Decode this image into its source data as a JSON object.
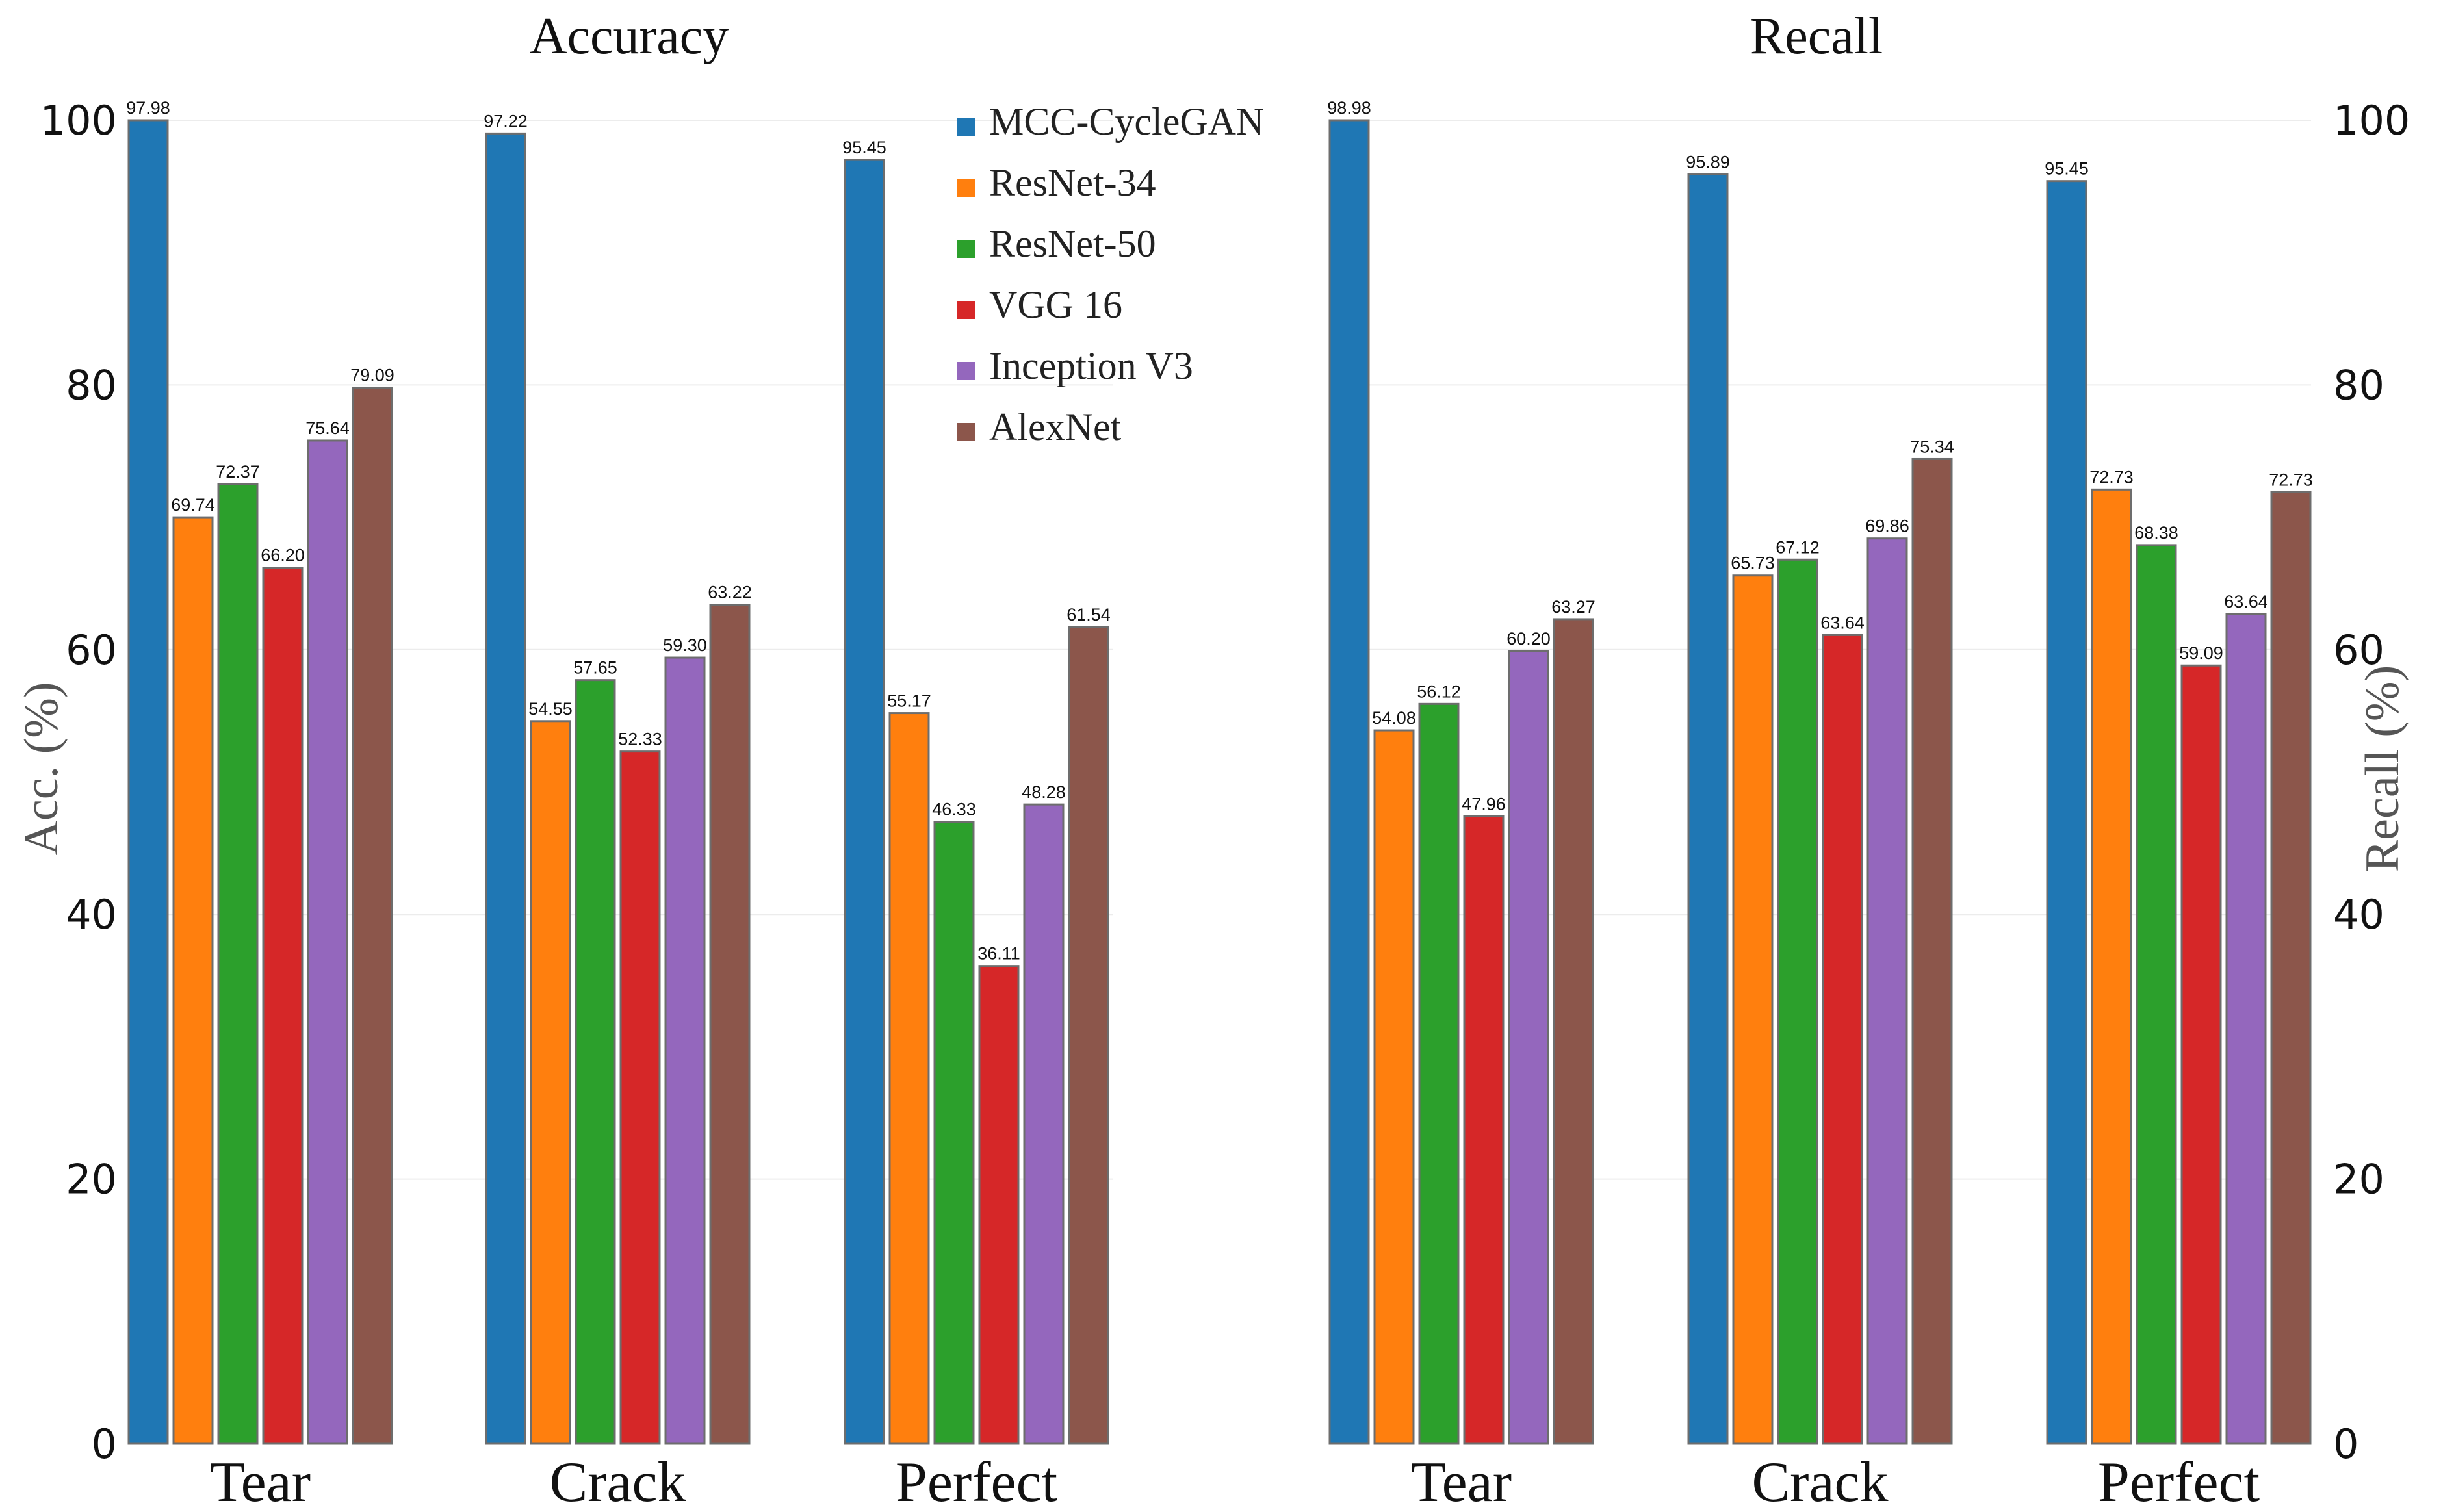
{
  "chart_data": [
    {
      "type": "bar",
      "title": "Accuracy",
      "ylabel": "Acc. (%)",
      "xlabel": "",
      "ylim": [
        0,
        100
      ],
      "yticks": [
        0,
        20,
        40,
        60,
        80,
        100
      ],
      "axis_side": "left",
      "legend": "top-right",
      "categories": [
        "Tear",
        "Crack",
        "Perfect"
      ],
      "series": [
        {
          "name": "MCC-CycleGAN",
          "color": "#1f77b4",
          "values": [
            97.98,
            97.22,
            95.45
          ]
        },
        {
          "name": "ResNet-34",
          "color": "#ff7f0e",
          "values": [
            69.74,
            54.55,
            55.17
          ]
        },
        {
          "name": "ResNet-50",
          "color": "#2ca02c",
          "values": [
            72.37,
            57.65,
            46.33
          ]
        },
        {
          "name": "VGG 16",
          "color": "#d62728",
          "values": [
            66.2,
            52.33,
            36.11
          ]
        },
        {
          "name": "Inception V3",
          "color": "#9467bd",
          "values": [
            75.64,
            59.3,
            48.28
          ]
        },
        {
          "name": "AlexNet",
          "color": "#8c564b",
          "values": [
            79.09,
            63.22,
            61.54
          ]
        }
      ],
      "value_labels": [
        [
          "97.98",
          "97.22",
          "95.45"
        ],
        [
          "69.74",
          "54.55",
          "55.17"
        ],
        [
          "72.37",
          "57.65",
          "46.33"
        ],
        [
          "66.20",
          "52.33",
          "36.11"
        ],
        [
          "75.64",
          "59.30",
          "48.28"
        ],
        [
          "79.09",
          "63.22",
          "61.54"
        ]
      ],
      "bar_heights": [
        [
          100,
          99,
          97
        ],
        [
          70,
          54.6,
          55.2
        ],
        [
          72.5,
          57.7,
          47
        ],
        [
          66.2,
          52.3,
          36.1
        ],
        [
          75.8,
          59.4,
          48.3
        ],
        [
          79.8,
          63.4,
          61.7
        ]
      ]
    },
    {
      "type": "bar",
      "title": "Recall",
      "ylabel": "Recall (%)",
      "xlabel": "",
      "ylim": [
        0,
        100
      ],
      "yticks": [
        0,
        20,
        40,
        60,
        80,
        100
      ],
      "axis_side": "right",
      "categories": [
        "Tear",
        "Crack",
        "Perfect"
      ],
      "series": [
        {
          "name": "MCC-CycleGAN",
          "color": "#1f77b4",
          "values": [
            98.98,
            95.89,
            95.45
          ]
        },
        {
          "name": "ResNet-34",
          "color": "#ff7f0e",
          "values": [
            54.08,
            65.73,
            72.73
          ]
        },
        {
          "name": "ResNet-50",
          "color": "#2ca02c",
          "values": [
            56.12,
            67.12,
            68.38
          ]
        },
        {
          "name": "VGG 16",
          "color": "#d62728",
          "values": [
            47.96,
            63.64,
            59.09
          ]
        },
        {
          "name": "Inception V3",
          "color": "#9467bd",
          "values": [
            60.2,
            69.86,
            63.64
          ]
        },
        {
          "name": "AlexNet",
          "color": "#8c564b",
          "values": [
            63.27,
            75.34,
            72.73
          ]
        }
      ],
      "value_labels": [
        [
          "98.98",
          "95.89",
          "95.45"
        ],
        [
          "54.08",
          "65.73",
          "72.73"
        ],
        [
          "56.12",
          "67.12",
          "68.38"
        ],
        [
          "47.96",
          "63.64",
          "59.09"
        ],
        [
          "60.20",
          "69.86",
          "63.64"
        ],
        [
          "63.27",
          "75.34",
          "72.73"
        ]
      ],
      "bar_heights": [
        [
          100,
          95.9,
          95.4
        ],
        [
          53.9,
          65.6,
          72.1
        ],
        [
          55.9,
          66.8,
          67.9
        ],
        [
          47.4,
          61.1,
          58.8
        ],
        [
          59.9,
          68.4,
          62.7
        ],
        [
          62.3,
          74.4,
          71.9
        ]
      ]
    }
  ]
}
